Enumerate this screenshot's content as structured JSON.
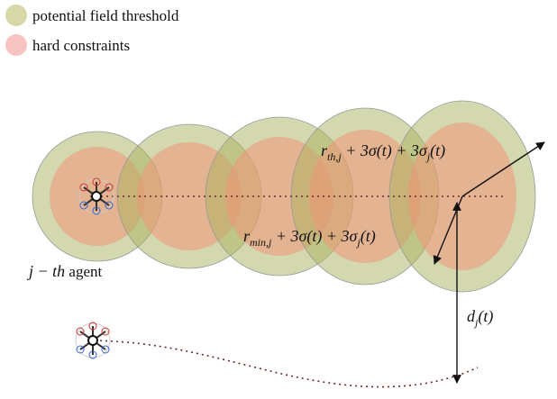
{
  "legend": {
    "items": [
      "potential field threshold",
      "hard constraints"
    ]
  },
  "labels": {
    "threshold_radius": [
      "r",
      "th,j",
      " + 3σ(t) + 3σ",
      "j",
      "(t)"
    ],
    "constraint_radius": [
      "r",
      "min,j",
      " + 3σ(t) + 3σ",
      "j",
      "(t)"
    ],
    "agent": [
      "j − th",
      " agent"
    ],
    "distance": [
      "d",
      "j",
      "(t)"
    ]
  }
}
